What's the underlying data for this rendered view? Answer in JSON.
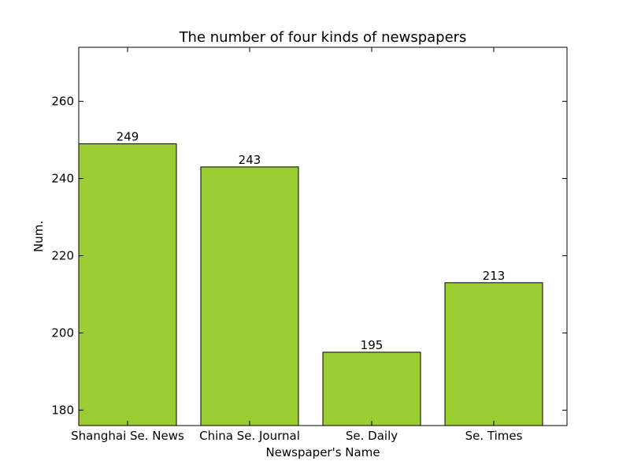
{
  "chart_data": {
    "type": "bar",
    "title": "The number of four kinds of newspapers",
    "xlabel": "Newspaper's Name",
    "ylabel": "Num.",
    "categories": [
      "Shanghai Se. News",
      "China Se. Journal",
      "Se. Daily",
      "Se. Times"
    ],
    "values": [
      249,
      243,
      195,
      213
    ],
    "data_labels": [
      "249",
      "243",
      "195",
      "213"
    ],
    "ylim": [
      176,
      274
    ],
    "yticks": [
      180,
      200,
      220,
      240,
      260
    ],
    "grid": false,
    "legend": "none",
    "bar_color": "#9acd32",
    "edge_color": "#000000"
  }
}
